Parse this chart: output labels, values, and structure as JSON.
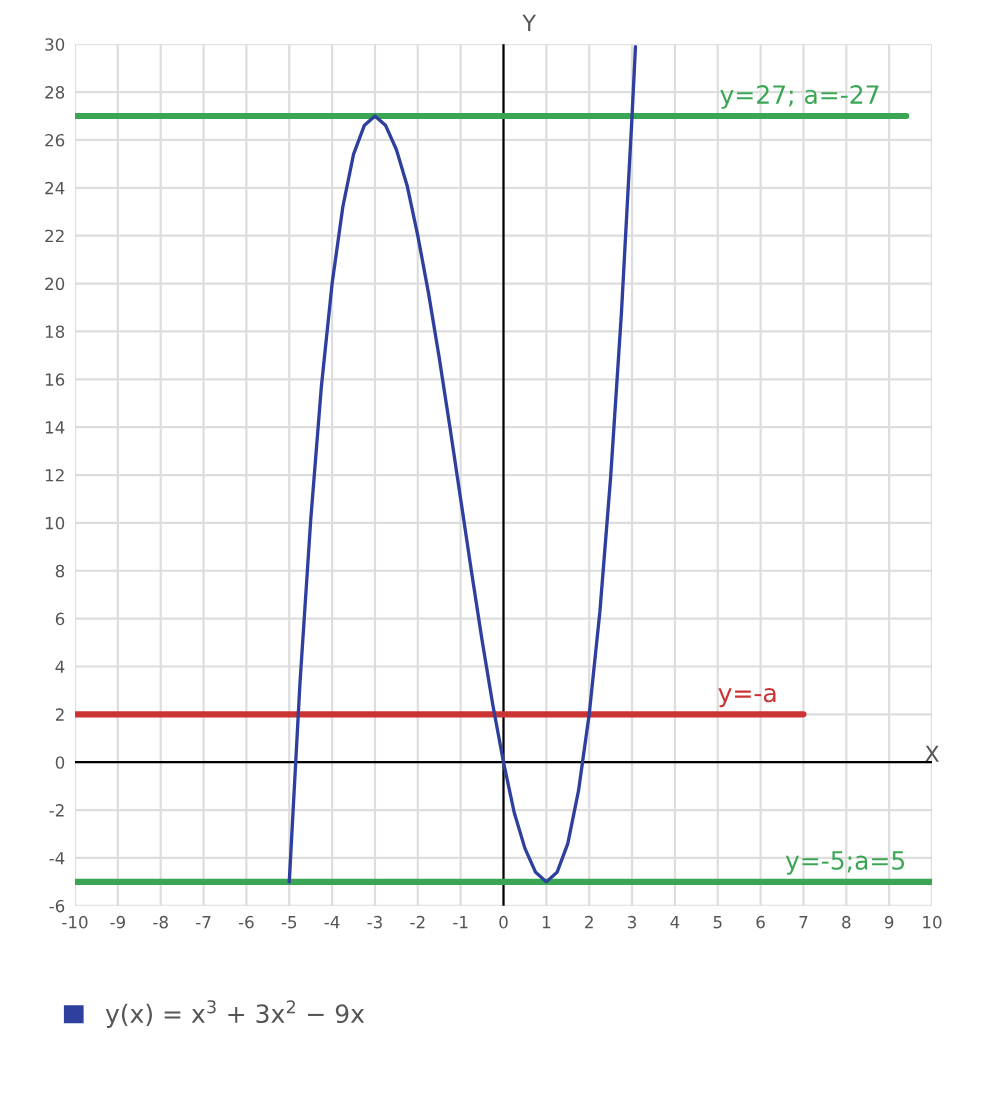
{
  "chart_data": {
    "type": "line",
    "xlabel": "X",
    "ylabel": "Y",
    "xlim": [
      -10,
      10
    ],
    "ylim": [
      -6,
      30
    ],
    "xticks": [
      -10,
      -9,
      -8,
      -7,
      -6,
      -5,
      -4,
      -3,
      -2,
      -1,
      0,
      1,
      2,
      3,
      4,
      5,
      6,
      7,
      8,
      9,
      10
    ],
    "yticks": [
      -6,
      -4,
      -2,
      0,
      2,
      4,
      6,
      8,
      10,
      12,
      14,
      16,
      18,
      20,
      22,
      24,
      26,
      28,
      30
    ],
    "grid": true,
    "legend": "bottom",
    "marker": "none",
    "line_style": "solid",
    "series": [
      {
        "name": "y(x) = x$^{3}$ + 3x$^{2}$ − 9x",
        "color": "#2e3f9e",
        "x": [
          -5,
          -4.75,
          -4.5,
          -4.25,
          -4,
          -3.75,
          -3.5,
          -3.25,
          -3,
          -2.75,
          -2.5,
          -2.25,
          -2,
          -1.75,
          -1.5,
          -1.25,
          -1,
          -0.75,
          -0.5,
          -0.25,
          0,
          0.25,
          0.5,
          0.75,
          1,
          1.25,
          1.5,
          1.75,
          2,
          2.25,
          2.5,
          2.75,
          3,
          3.08
        ],
        "values": [
          -5,
          3.3,
          10.1,
          15.7,
          20,
          23.2,
          25.4,
          26.6,
          27,
          26.6,
          25.6,
          24.1,
          22,
          19.6,
          16.9,
          14,
          11,
          8,
          5.1,
          2.4,
          0,
          -2.1,
          -3.6,
          -4.6,
          -5,
          -4.6,
          -3.4,
          -1.2,
          2,
          6.3,
          11.9,
          18.7,
          27,
          29.9
        ]
      },
      {
        "name": "y=27; a=-27",
        "color": "#3aa655",
        "x": [
          -10,
          9.4
        ],
        "values": [
          27,
          27
        ]
      },
      {
        "name": "y=-a",
        "color": "#cc3333",
        "x": [
          -10,
          7
        ],
        "values": [
          2,
          2
        ]
      },
      {
        "name": "y=-5;a=5",
        "color": "#3aa655",
        "x": [
          -10,
          10
        ],
        "values": [
          -5,
          -5
        ]
      }
    ]
  }
}
